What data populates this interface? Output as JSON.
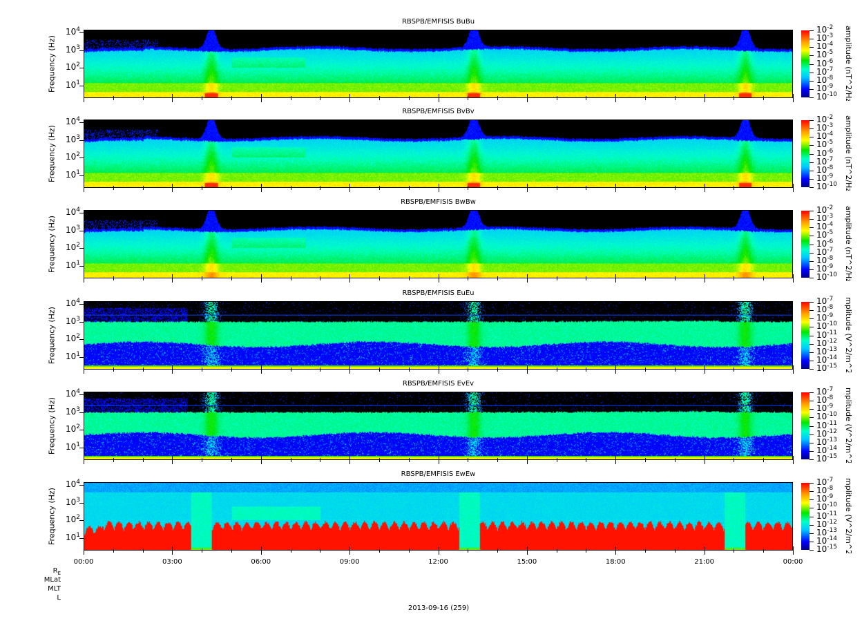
{
  "chart_data": [
    {
      "type": "heatmap",
      "title": "RBSPB/EMFISIS  BuBu",
      "ylabel": "Frequency (Hz)",
      "yscale": "log",
      "ylim": [
        2,
        14000
      ],
      "yticks": [
        "10^4",
        "10^3",
        "10^2",
        "10^1"
      ],
      "colorbar_label": "amplitude (nT^2/Hz)",
      "zscale": "log",
      "zlim": [
        1e-10,
        0.01
      ],
      "zticks": [
        "-2",
        "-3",
        "-4",
        "-5",
        "-6",
        "-7",
        "-8",
        "-9",
        "-10"
      ],
      "kind": "B"
    },
    {
      "type": "heatmap",
      "title": "RBSPB/EMFISIS  BvBv",
      "ylabel": "Frequency (Hz)",
      "yscale": "log",
      "ylim": [
        2,
        14000
      ],
      "yticks": [
        "10^4",
        "10^3",
        "10^2",
        "10^1"
      ],
      "colorbar_label": "amplitude (nT^2/Hz)",
      "zscale": "log",
      "zlim": [
        1e-10,
        0.01
      ],
      "zticks": [
        "-2",
        "-3",
        "-4",
        "-5",
        "-6",
        "-7",
        "-8",
        "-9",
        "-10"
      ],
      "kind": "B"
    },
    {
      "type": "heatmap",
      "title": "RBSPB/EMFISIS  BwBw",
      "ylabel": "Frequency (Hz)",
      "yscale": "log",
      "ylim": [
        2,
        14000
      ],
      "yticks": [
        "10^4",
        "10^3",
        "10^2",
        "10^1"
      ],
      "colorbar_label": "amplitude (nT^2/Hz)",
      "zscale": "log",
      "zlim": [
        1e-10,
        0.01
      ],
      "zticks": [
        "-2",
        "-3",
        "-4",
        "-5",
        "-6",
        "-7",
        "-8",
        "-9",
        "-10"
      ],
      "kind": "B3"
    },
    {
      "type": "heatmap",
      "title": "RBSPB/EMFISIS  EuEu",
      "ylabel": "Frequency (Hz)",
      "yscale": "log",
      "ylim": [
        2,
        14000
      ],
      "yticks": [
        "10^4",
        "10^3",
        "10^2",
        "10^1"
      ],
      "colorbar_label": "mplitude (V^2/m^2/H",
      "zscale": "log",
      "zlim": [
        1e-15,
        1e-07
      ],
      "zticks": [
        "-7",
        "-8",
        "-9",
        "-10",
        "-11",
        "-12",
        "-13",
        "-14",
        "-15"
      ],
      "kind": "E"
    },
    {
      "type": "heatmap",
      "title": "RBSPB/EMFISIS  EvEv",
      "ylabel": "Frequency (Hz)",
      "yscale": "log",
      "ylim": [
        2,
        14000
      ],
      "yticks": [
        "10^4",
        "10^3",
        "10^2",
        "10^1"
      ],
      "colorbar_label": "mplitude (V^2/m^2/H",
      "zscale": "log",
      "zlim": [
        1e-15,
        1e-07
      ],
      "zticks": [
        "-7",
        "-8",
        "-9",
        "-10",
        "-11",
        "-12",
        "-13",
        "-14",
        "-15"
      ],
      "kind": "E"
    },
    {
      "type": "heatmap",
      "title": "RBSPB/EMFISIS  EwEw",
      "ylabel": "Frequency (Hz)",
      "yscale": "log",
      "ylim": [
        2,
        14000
      ],
      "yticks": [
        "10^4",
        "10^3",
        "10^2",
        "10^1"
      ],
      "colorbar_label": "mplitude (V^2/m^2/H",
      "zscale": "log",
      "zlim": [
        1e-15,
        1e-07
      ],
      "zticks": [
        "-7",
        "-8",
        "-9",
        "-10",
        "-11",
        "-12",
        "-13",
        "-14",
        "-15"
      ],
      "kind": "W"
    }
  ],
  "xaxis": {
    "ticks": [
      "00:00",
      "03:00",
      "06:00",
      "09:00",
      "12:00",
      "15:00",
      "18:00",
      "21:00",
      "00:00"
    ],
    "xlim_hours": [
      0,
      24
    ],
    "date_label": "2013-09-16 (259)"
  },
  "ephemeris_labels": [
    "R",
    "MLat",
    "MLT",
    "L"
  ],
  "ephemeris_sub": "E"
}
